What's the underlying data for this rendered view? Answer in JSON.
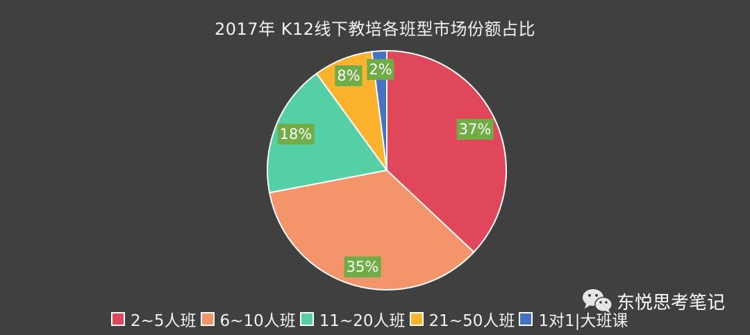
{
  "chart_data": {
    "type": "pie",
    "title": "2017年 K12线下教培各班型市场份额占比",
    "categories": [
      "2~5人班",
      "6~10人班",
      "11~20人班",
      "21~50人班",
      "1对1|大班课"
    ],
    "values": [
      37,
      35,
      18,
      8,
      2
    ],
    "unit": "%",
    "colors": [
      "#e0475a",
      "#f4946a",
      "#55cfa5",
      "#fbb32e",
      "#4472c4"
    ],
    "data_labels": [
      "37%",
      "35%",
      "18%",
      "8%",
      "2%"
    ],
    "data_label_background": "#70ad47",
    "legend_position": "bottom",
    "start_angle": 0,
    "direction": "clockwise"
  },
  "title": "2017年 K12线下教培各班型市场份额占比",
  "labels": {
    "s0": "37%",
    "s1": "35%",
    "s2": "18%",
    "s3": "8%",
    "s4": "2%"
  },
  "legend": {
    "items": [
      {
        "label": "2~5人班",
        "color": "#e0475a"
      },
      {
        "label": "6~10人班",
        "color": "#f4946a"
      },
      {
        "label": "11~20人班",
        "color": "#55cfa5"
      },
      {
        "label": "21~50人班",
        "color": "#fbb32e"
      },
      {
        "label": "1对1|大班课",
        "color": "#4472c4"
      }
    ]
  },
  "watermark": {
    "icon": "wechat-icon",
    "text": "东悦思考笔记"
  }
}
